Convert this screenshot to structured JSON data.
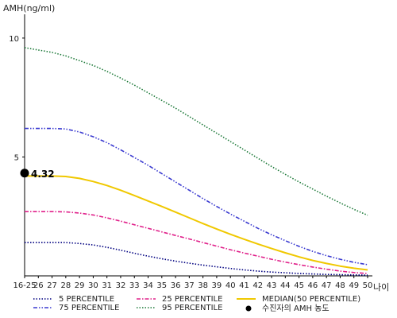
{
  "chart_data": {
    "type": "line",
    "ylabel": "AMH(ng/ml)",
    "xlabel": "나이",
    "categories": [
      "16-25",
      "26",
      "27",
      "28",
      "29",
      "30",
      "31",
      "32",
      "33",
      "34",
      "35",
      "36",
      "37",
      "38",
      "39",
      "40",
      "41",
      "42",
      "43",
      "44",
      "45",
      "46",
      "47",
      "48",
      "49",
      "50"
    ],
    "y_ticks": [
      5,
      10
    ],
    "ylim": [
      0,
      11
    ],
    "grid": false,
    "legend_position": "bottom",
    "series": [
      {
        "name": "5 PERCENTILE",
        "color": "#000080",
        "style": "dotted",
        "values": [
          1.4,
          1.4,
          1.4,
          1.4,
          1.36,
          1.3,
          1.2,
          1.08,
          0.95,
          0.83,
          0.72,
          0.62,
          0.53,
          0.45,
          0.38,
          0.31,
          0.25,
          0.2,
          0.16,
          0.13,
          0.1,
          0.08,
          0.06,
          0.05,
          0.04,
          0.03
        ]
      },
      {
        "name": "25 PERCENTILE",
        "color": "#e0208a",
        "style": "dashdot",
        "values": [
          2.7,
          2.7,
          2.7,
          2.69,
          2.64,
          2.56,
          2.44,
          2.3,
          2.15,
          2.0,
          1.85,
          1.7,
          1.55,
          1.4,
          1.25,
          1.1,
          0.96,
          0.83,
          0.7,
          0.58,
          0.47,
          0.37,
          0.28,
          0.2,
          0.14,
          0.1
        ]
      },
      {
        "name": "MEDIAN(50 PERCENTILE)",
        "color": "#f0c800",
        "style": "solid",
        "values": [
          4.2,
          4.2,
          4.2,
          4.18,
          4.1,
          3.97,
          3.8,
          3.6,
          3.38,
          3.15,
          2.92,
          2.68,
          2.44,
          2.2,
          1.97,
          1.75,
          1.54,
          1.34,
          1.15,
          0.97,
          0.8,
          0.65,
          0.52,
          0.41,
          0.32,
          0.25
        ]
      },
      {
        "name": "75 PERCENTILE",
        "color": "#3a3ad0",
        "style": "dashdotdot",
        "values": [
          6.2,
          6.2,
          6.2,
          6.18,
          6.05,
          5.85,
          5.6,
          5.3,
          4.98,
          4.65,
          4.3,
          3.95,
          3.6,
          3.25,
          2.92,
          2.6,
          2.3,
          2.0,
          1.73,
          1.48,
          1.24,
          1.03,
          0.85,
          0.7,
          0.57,
          0.47
        ]
      },
      {
        "name": "95 PERCENTILE",
        "color": "#1e7a3a",
        "style": "dotted",
        "values": [
          9.6,
          9.5,
          9.4,
          9.25,
          9.05,
          8.85,
          8.6,
          8.32,
          8.02,
          7.7,
          7.38,
          7.05,
          6.7,
          6.35,
          6.0,
          5.65,
          5.3,
          4.95,
          4.6,
          4.27,
          3.95,
          3.65,
          3.35,
          3.07,
          2.8,
          2.55
        ]
      }
    ],
    "markers": [
      {
        "label": "4.32",
        "x": "16-25",
        "y": 4.32
      }
    ],
    "marker_legend": "수진자의 AMH 농도"
  }
}
